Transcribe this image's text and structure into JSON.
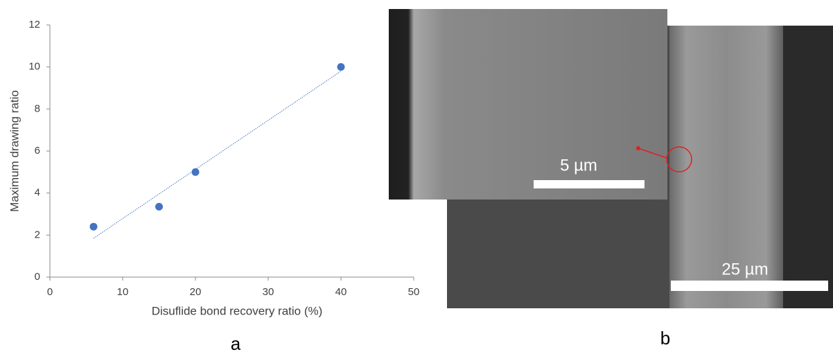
{
  "chart_data": {
    "type": "scatter",
    "x": [
      6,
      15,
      20,
      40
    ],
    "values": [
      2.4,
      3.35,
      5,
      10
    ],
    "color": "#4472c4",
    "trendline": {
      "x": [
        6,
        40
      ],
      "values": [
        1.85,
        9.8
      ]
    },
    "xlim": [
      0,
      50
    ],
    "ylim": [
      0,
      12
    ],
    "xticks": [
      0,
      10,
      20,
      30,
      40,
      50
    ],
    "yticks": [
      0,
      2,
      4,
      6,
      8,
      10,
      12
    ],
    "xlabel": "Disuflide bond recovery ratio (%)",
    "ylabel": "Maximum drawing ratio",
    "panel_label": "a"
  },
  "micrograph": {
    "panel_label": "b",
    "inset_scale": "5 µm",
    "main_scale": "25 µm"
  }
}
